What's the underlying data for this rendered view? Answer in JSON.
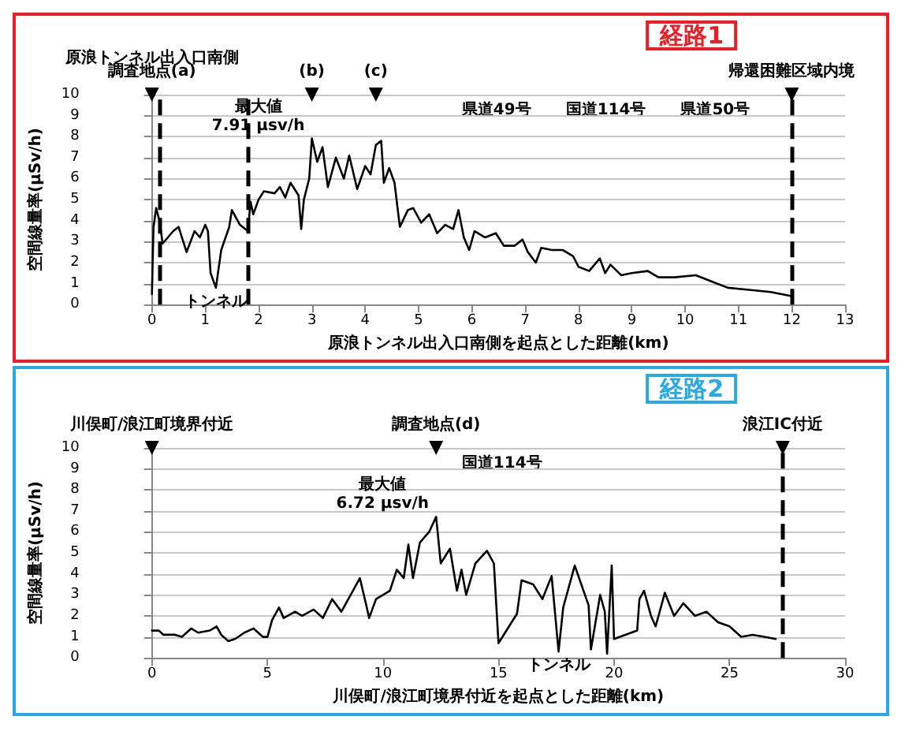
{
  "chart_data": [
    {
      "type": "line",
      "title": "経路1",
      "xlabel": "原浪トンネル出入口南側を起点とした距離(km)",
      "ylabel": "空間線量率(μSv/h)",
      "xlim": [
        0,
        13
      ],
      "xticks": [
        0,
        1,
        2,
        3,
        4,
        5,
        6,
        7,
        8,
        9,
        10,
        11,
        12,
        13
      ],
      "ylim": [
        0,
        10
      ],
      "yticks": [
        0,
        1,
        2,
        3,
        4,
        5,
        6,
        7,
        8,
        9,
        10
      ],
      "grid": "y",
      "series": [
        {
          "color": "#000000",
          "x": [
            0,
            0.03,
            0.08,
            0.15,
            0.2,
            0.4,
            0.5,
            0.65,
            0.8,
            0.9,
            1.0,
            1.05,
            1.1,
            1.2,
            1.3,
            1.45,
            1.5,
            1.65,
            1.8,
            1.85,
            1.9,
            2.0,
            2.1,
            2.3,
            2.4,
            2.5,
            2.6,
            2.75,
            2.8,
            2.85,
            2.95,
            3.0,
            3.1,
            3.2,
            3.3,
            3.45,
            3.6,
            3.7,
            3.85,
            4.0,
            4.1,
            4.2,
            4.3,
            4.35,
            4.45,
            4.55,
            4.65,
            4.8,
            4.9,
            5.05,
            5.2,
            5.35,
            5.5,
            5.65,
            5.75,
            5.85,
            5.95,
            6.05,
            6.25,
            6.45,
            6.6,
            6.8,
            6.95,
            7.05,
            7.2,
            7.3,
            7.5,
            7.7,
            7.9,
            8.0,
            8.2,
            8.4,
            8.5,
            8.6,
            8.8,
            9.0,
            9.3,
            9.5,
            9.8,
            10.2,
            10.5,
            10.8,
            11.2,
            11.6,
            12.0
          ],
          "values": [
            0.5,
            3.7,
            4.6,
            3.9,
            2.9,
            3.5,
            3.7,
            2.5,
            3.5,
            3.2,
            3.8,
            3.5,
            1.5,
            0.8,
            2.6,
            3.7,
            4.5,
            3.8,
            3.5,
            4.9,
            4.3,
            5.0,
            5.4,
            5.3,
            5.6,
            5.1,
            5.8,
            5.2,
            3.6,
            5.0,
            6.0,
            7.91,
            6.8,
            7.5,
            5.6,
            7.0,
            6.0,
            7.1,
            5.5,
            6.6,
            6.2,
            7.6,
            7.8,
            5.8,
            6.5,
            5.8,
            3.7,
            4.5,
            4.6,
            3.9,
            4.3,
            3.4,
            3.8,
            3.6,
            4.5,
            3.2,
            2.6,
            3.5,
            3.2,
            3.4,
            2.8,
            2.8,
            3.1,
            2.5,
            2.0,
            2.7,
            2.6,
            2.6,
            2.3,
            1.8,
            1.6,
            2.2,
            1.5,
            1.9,
            1.4,
            1.5,
            1.6,
            1.3,
            1.3,
            1.4,
            1.1,
            0.8,
            0.7,
            0.6,
            0.4
          ]
        }
      ],
      "ref_lines": [
        {
          "axis": "x",
          "value": 0.15,
          "line_style": "dashed"
        },
        {
          "axis": "x",
          "value": 1.8,
          "line_style": "dashed"
        },
        {
          "axis": "x",
          "value": 12,
          "line_style": "dashed"
        }
      ],
      "annotations": [
        {
          "text": "調査地点(a)",
          "x": 0,
          "y": 10
        },
        {
          "text": "原浪トンネル出入口南側",
          "x": 0,
          "y": 10
        },
        {
          "text": "(b)",
          "x": 3.0,
          "y": 10
        },
        {
          "text": "(c)",
          "x": 4.2,
          "y": 10
        },
        {
          "text": "帰還困難区域内境",
          "x": 12,
          "y": 10
        },
        {
          "text": "最大値\n7.91 μsv/h",
          "x": 3.0,
          "y": 7.91
        },
        {
          "text": "トンネル",
          "x": 1.2,
          "y": 0.8
        },
        "県道49号",
        "国道114号",
        "県道50号"
      ]
    },
    {
      "type": "line",
      "title": "経路2",
      "xlabel": "川俣町/浪江町境界付近を起点とした距離(km)",
      "ylabel": "空間線量率(μSv/h)",
      "xlim": [
        0,
        30
      ],
      "xticks": [
        0,
        5,
        10,
        15,
        20,
        25,
        30
      ],
      "ylim": [
        0,
        10
      ],
      "yticks": [
        0,
        1,
        2,
        3,
        4,
        5,
        6,
        7,
        8,
        9,
        10
      ],
      "grid": "y",
      "series": [
        {
          "color": "#000000",
          "x": [
            0,
            0.3,
            0.5,
            1.0,
            1.3,
            1.7,
            2.0,
            2.5,
            2.8,
            3.0,
            3.3,
            3.6,
            4.0,
            4.4,
            4.8,
            5.0,
            5.2,
            5.5,
            5.7,
            6.2,
            6.5,
            7.0,
            7.4,
            7.8,
            8.2,
            8.6,
            9.0,
            9.3,
            9.4,
            9.7,
            10.3,
            10.6,
            10.9,
            11.1,
            11.3,
            11.6,
            12.0,
            12.3,
            12.5,
            12.9,
            13.2,
            13.4,
            13.6,
            14.0,
            14.5,
            14.8,
            15.0,
            15.8,
            16.0,
            16.5,
            16.9,
            17.3,
            17.6,
            17.8,
            18.3,
            18.9,
            19.0,
            19.4,
            19.6,
            19.7,
            19.9,
            20.0,
            21.0,
            21.1,
            21.3,
            21.6,
            21.8,
            22.2,
            22.6,
            23.0,
            23.5,
            24.0,
            24.5,
            25.0,
            25.5,
            26.0,
            26.5,
            27.0
          ],
          "values": [
            1.3,
            1.3,
            1.1,
            1.1,
            1.0,
            1.4,
            1.2,
            1.3,
            1.5,
            1.1,
            0.8,
            0.9,
            1.2,
            1.4,
            1.0,
            1.0,
            1.8,
            2.4,
            1.9,
            2.2,
            2.0,
            2.3,
            1.9,
            2.8,
            2.2,
            3.0,
            3.8,
            2.4,
            1.9,
            2.8,
            3.2,
            4.2,
            3.8,
            5.4,
            3.8,
            5.5,
            6.0,
            6.72,
            4.5,
            5.2,
            3.2,
            4.2,
            3.0,
            4.5,
            5.1,
            4.5,
            0.7,
            2.1,
            3.7,
            3.5,
            2.8,
            3.9,
            0.3,
            2.4,
            4.4,
            2.5,
            0.4,
            3.0,
            2.2,
            0.2,
            4.4,
            0.9,
            1.3,
            2.8,
            3.2,
            2.0,
            1.5,
            3.1,
            2.0,
            2.6,
            2.0,
            2.2,
            1.7,
            1.5,
            1.0,
            1.1,
            1.0,
            0.9
          ]
        }
      ],
      "ref_lines": [
        {
          "axis": "x",
          "value": 27.3,
          "line_style": "dashed"
        }
      ],
      "annotations": [
        {
          "text": "川俣町/浪江町境界付近",
          "x": 0,
          "y": 10
        },
        {
          "text": "調査地点(d)",
          "x": 12.3,
          "y": 10
        },
        {
          "text": "浪江IC付近",
          "x": 27.3,
          "y": 10
        },
        {
          "text": "最大値\n6.72 μsv/h",
          "x": 12.3,
          "y": 6.72
        },
        {
          "text": "トンネル",
          "x": 17.6,
          "y": 0.3
        },
        "国道114号"
      ]
    }
  ]
}
